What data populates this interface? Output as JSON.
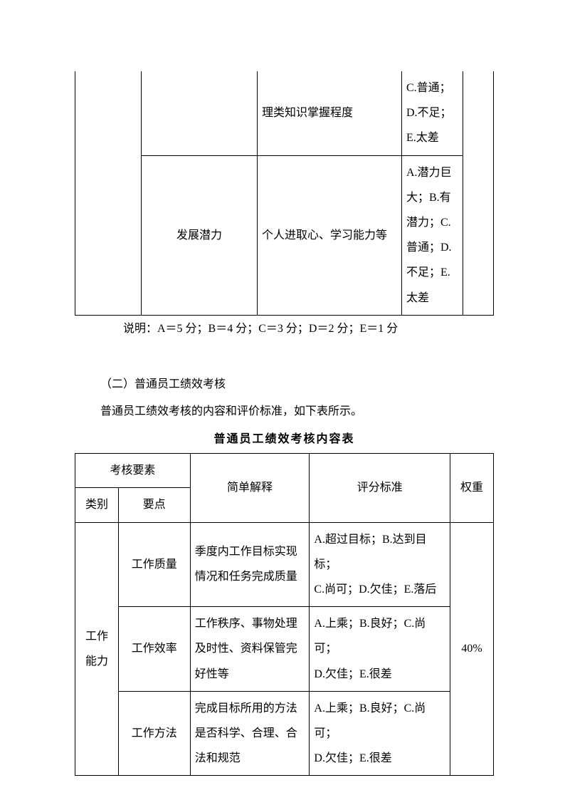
{
  "colors": {
    "text": "#000000",
    "border": "#000000",
    "background": "#ffffff"
  },
  "table1": {
    "row1": {
      "col2_blank": "",
      "col3": "理类知识掌握程度",
      "col4": "C.普通；\nD.不足；E.太差",
      "col5_blank": ""
    },
    "row2": {
      "col2": "发展潜力",
      "col3": "个人进取心、学习能力等",
      "col4": "A.潜力巨大；B.有潜力；C.普通；D.不足；E.太差"
    }
  },
  "note": "说明：A＝5 分；B＝4 分；C＝3 分；D＝2 分；E＝1 分",
  "section2_heading": "（二）普通员工绩效考核",
  "section2_para": "普通员工绩效考核的内容和评价标准，如下表所示。",
  "table2": {
    "title": "普通员工绩效考核内容表",
    "header": {
      "element": "考核要素",
      "category": "类别",
      "point": "要点",
      "explain": "简单解释",
      "standard": "评分标准",
      "weight": "权重"
    },
    "group": {
      "category": "工作能力",
      "weight": "40%",
      "rows": [
        {
          "point": "工作质量",
          "explain": "季度内工作目标实现情况和任务完成质量",
          "standard": "A.超过目标；B.达到目标；\nC.尚可；D.欠佳；E.落后"
        },
        {
          "point": "工作效率",
          "explain": "工作秩序、事物处理及时性、资料保管完好性等",
          "standard": "A.上乘；B.良好；C.尚可；\nD.欠佳；E.很差"
        },
        {
          "point": "工作方法",
          "explain": "完成目标所用的方法是否科学、合理、合法和规范",
          "standard": "A.上乘；B.良好；C.尚可；\nD.欠佳；E.很差"
        }
      ]
    }
  }
}
